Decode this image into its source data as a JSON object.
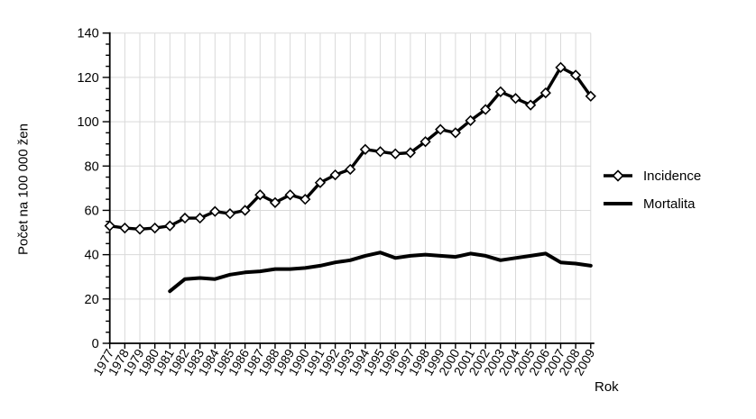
{
  "chart_data": {
    "type": "line",
    "title": "",
    "xlabel": "Rok",
    "ylabel": "Počet na 100 000 žen",
    "x": [
      1977,
      1978,
      1979,
      1980,
      1981,
      1982,
      1983,
      1984,
      1985,
      1986,
      1987,
      1988,
      1989,
      1990,
      1991,
      1992,
      1993,
      1994,
      1995,
      1996,
      1997,
      1998,
      1999,
      2000,
      2001,
      2002,
      2003,
      2004,
      2005,
      2006,
      2007,
      2008,
      2009
    ],
    "series": [
      {
        "name": "Incidence",
        "marker": "diamond",
        "color": "#000000",
        "values": [
          53,
          52,
          51.5,
          52,
          53,
          56.5,
          56.5,
          59.5,
          58.5,
          60,
          67,
          63.5,
          67,
          65,
          72.5,
          76,
          78.5,
          87.5,
          86.5,
          85.5,
          86,
          91,
          96.5,
          95,
          100.5,
          105.5,
          113.5,
          110.5,
          107.5,
          113,
          124.5,
          121,
          111.5
        ]
      },
      {
        "name": "Mortalita",
        "marker": "none",
        "color": "#000000",
        "values": [
          null,
          null,
          null,
          null,
          23.5,
          29,
          29.5,
          29,
          31,
          32,
          32.5,
          33.5,
          33.5,
          34,
          35,
          36.5,
          37.5,
          39.5,
          41,
          38.5,
          39.5,
          40,
          39.5,
          39,
          40.5,
          39.5,
          37.5,
          38.5,
          39.5,
          40.5,
          36.5,
          36,
          35
        ]
      }
    ],
    "ylim": [
      0,
      140
    ],
    "y_ticks": [
      0,
      20,
      40,
      60,
      80,
      100,
      120,
      140
    ],
    "y_major_step": 20,
    "y_minor_step": 5,
    "grid": true,
    "grid_color": "#d9d9d9",
    "axis_color": "#000000",
    "legend_position": "right"
  }
}
